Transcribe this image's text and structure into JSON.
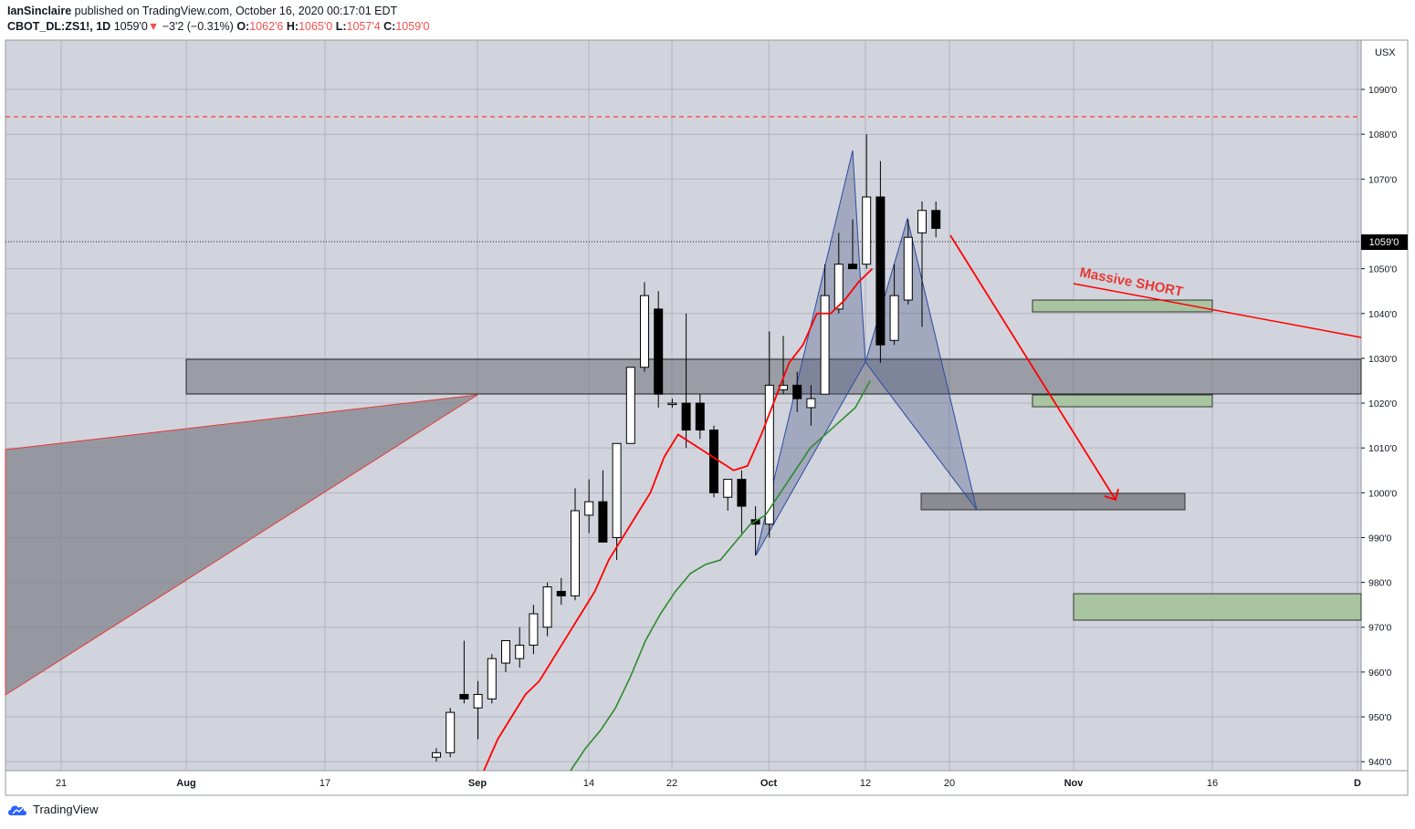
{
  "header": {
    "author": "IanSinclaire",
    "published_text": "published on TradingView.com, October 16, 2020 00:17:01 EDT",
    "symbol": "CBOT_DL:ZS1!, 1D",
    "last": "1059'0",
    "arrow": "▼",
    "change": "−3'2 (−0.31%)",
    "o_label": "O:",
    "o_value": "1062'6",
    "h_label": "H:",
    "h_value": "1065'0",
    "l_label": "L:",
    "l_value": "1057'4",
    "c_label": "C:",
    "c_value": "1059'0"
  },
  "footer": {
    "brand": "TradingView"
  },
  "chart_data": {
    "type": "candlestick",
    "currency": "USX",
    "price_label": "1059'0",
    "yaxis_ticks": [
      "1090'0",
      "1080'0",
      "1070'0",
      "1050'0",
      "1040'0",
      "1030'0",
      "1020'0",
      "1010'0",
      "1000'0",
      "990'0",
      "980'0",
      "970'0",
      "960'0",
      "950'0",
      "940'0"
    ],
    "xaxis_ticks": [
      "21",
      "Aug",
      "17",
      "Sep",
      "14",
      "22",
      "Oct",
      "12",
      "20",
      "Nov",
      "16",
      "D"
    ],
    "ylim": [
      938,
      1101
    ],
    "annotation": "Massive SHORT",
    "colors": {
      "up": "#ffffff",
      "down": "#000000",
      "ema_fast": "#ff0000",
      "ema_slow": "#2e8b2e",
      "harmonic": "#1c3f8f",
      "dashed_level": "#ff3b3b"
    },
    "dashed_level": 1088,
    "candles": [
      {
        "o": 941,
        "h": 943,
        "l": 940,
        "c": 942
      },
      {
        "o": 942,
        "h": 952,
        "l": 941,
        "c": 951
      },
      {
        "o": 955,
        "h": 967,
        "l": 953,
        "c": 954
      },
      {
        "o": 952,
        "h": 958,
        "l": 945,
        "c": 955
      },
      {
        "o": 954,
        "h": 964,
        "l": 953,
        "c": 963
      },
      {
        "o": 962,
        "h": 967,
        "l": 960,
        "c": 967
      },
      {
        "o": 963,
        "h": 970,
        "l": 961,
        "c": 966
      },
      {
        "o": 966,
        "h": 975,
        "l": 964,
        "c": 973
      },
      {
        "o": 970,
        "h": 980,
        "l": 968,
        "c": 979
      },
      {
        "o": 978,
        "h": 981,
        "l": 975,
        "c": 977
      },
      {
        "o": 977,
        "h": 1001,
        "l": 976,
        "c": 996
      },
      {
        "o": 995,
        "h": 1003,
        "l": 991,
        "c": 998
      },
      {
        "o": 998,
        "h": 1005,
        "l": 990,
        "c": 989
      },
      {
        "o": 990,
        "h": 1010,
        "l": 985,
        "c": 1011
      },
      {
        "o": 1011,
        "h": 1028,
        "l": 1011,
        "c": 1028
      },
      {
        "o": 1028,
        "h": 1047,
        "l": 1027,
        "c": 1044
      },
      {
        "o": 1041,
        "h": 1045,
        "l": 1019,
        "c": 1022
      },
      {
        "o": 1020,
        "h": 1021,
        "l": 1019,
        "c": 1020
      },
      {
        "o": 1020,
        "h": 1040,
        "l": 1010,
        "c": 1014
      },
      {
        "o": 1020,
        "h": 1022,
        "l": 1012,
        "c": 1014
      },
      {
        "o": 1014,
        "h": 1015,
        "l": 999,
        "c": 1000
      },
      {
        "o": 999,
        "h": 1003,
        "l": 996,
        "c": 1003
      },
      {
        "o": 1003,
        "h": 1005,
        "l": 991,
        "c": 997
      },
      {
        "o": 994,
        "h": 997,
        "l": 986,
        "c": 993
      },
      {
        "o": 993,
        "h": 1036,
        "l": 990,
        "c": 1024
      },
      {
        "o": 1023,
        "h": 1035,
        "l": 1022,
        "c": 1024
      },
      {
        "o": 1024,
        "h": 1027,
        "l": 1018,
        "c": 1021
      },
      {
        "o": 1019,
        "h": 1024,
        "l": 1015,
        "c": 1021
      },
      {
        "o": 1022,
        "h": 1051,
        "l": 1022,
        "c": 1044
      },
      {
        "o": 1041,
        "h": 1058,
        "l": 1040,
        "c": 1051
      },
      {
        "o": 1051,
        "h": 1061,
        "l": 1050,
        "c": 1050
      },
      {
        "o": 1051,
        "h": 1080,
        "l": 1050,
        "c": 1066
      },
      {
        "o": 1066,
        "h": 1074,
        "l": 1029,
        "c": 1033
      },
      {
        "o": 1034,
        "h": 1051,
        "l": 1033,
        "c": 1044
      },
      {
        "o": 1043,
        "h": 1061,
        "l": 1042,
        "c": 1057
      },
      {
        "o": 1058,
        "h": 1065,
        "l": 1037,
        "c": 1063
      },
      {
        "o": 1063,
        "h": 1065,
        "l": 1057,
        "c": 1059
      }
    ],
    "ema_fast": [
      938,
      945,
      950,
      955,
      958,
      963,
      968,
      973,
      978,
      985,
      990,
      995,
      1000,
      1008,
      1013,
      1011,
      1009,
      1007,
      1005,
      1006,
      1013,
      1021,
      1029,
      1033,
      1040,
      1040,
      1043,
      1047,
      1050
    ],
    "ema_slow": [
      938,
      943,
      947,
      952,
      959,
      967,
      973,
      978,
      982,
      984,
      985,
      989,
      993,
      995,
      1000,
      1005,
      1010,
      1013,
      1016,
      1019,
      1025
    ]
  }
}
